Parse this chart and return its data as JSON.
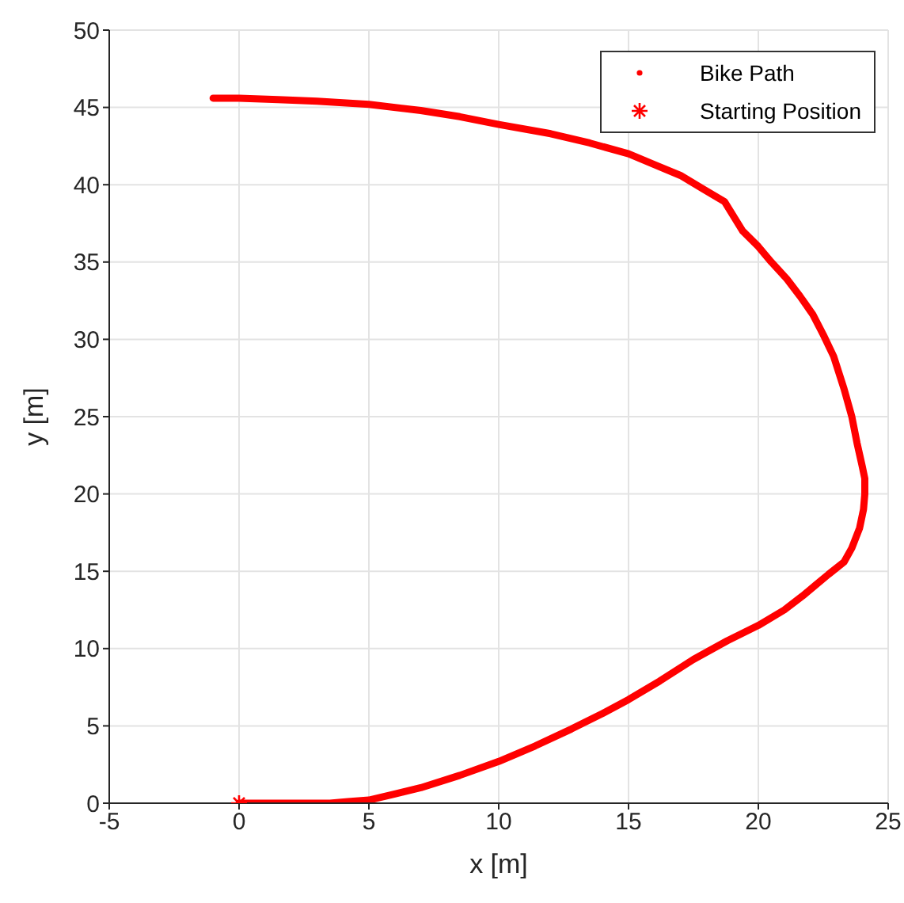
{
  "chart_data": {
    "type": "scatter",
    "xlabel": "x [m]",
    "ylabel": "y [m]",
    "xlim": [
      -5,
      25
    ],
    "ylim": [
      0,
      50
    ],
    "xticks": [
      -5,
      0,
      5,
      10,
      15,
      20,
      25
    ],
    "yticks": [
      0,
      5,
      10,
      15,
      20,
      25,
      30,
      35,
      40,
      45,
      50
    ],
    "grid": true,
    "legend": "top right",
    "series": [
      {
        "name": "Bike Path",
        "color": "#ff0000",
        "type": "line",
        "marker": "none",
        "line_style": "solid",
        "x": [
          0,
          3.5,
          4.2,
          5,
          6,
          7,
          8.5,
          10,
          11.4,
          12.8,
          14,
          15,
          16.2,
          17.5,
          18.8,
          20,
          21,
          21.7,
          22.2,
          22.7,
          23.3,
          23.6,
          23.9,
          24.05,
          24.1,
          24.1,
          24.0,
          23.8,
          23.6,
          23.3,
          22.9,
          22.5,
          22.1,
          21.6,
          21.1,
          20.5,
          20,
          19.4,
          18.7,
          17.9,
          17,
          16,
          15,
          13.5,
          12,
          10,
          8.5,
          7,
          5,
          3,
          1.5,
          0,
          -1
        ],
        "values": [
          0,
          0,
          0.1,
          0.2,
          0.6,
          1.0,
          1.8,
          2.7,
          3.7,
          4.8,
          5.8,
          6.7,
          7.9,
          9.3,
          10.5,
          11.5,
          12.5,
          13.4,
          14.1,
          14.8,
          15.6,
          16.5,
          17.8,
          19,
          20,
          21,
          21.8,
          23.3,
          25,
          26.8,
          28.9,
          30.3,
          31.6,
          32.8,
          33.9,
          35,
          36,
          37,
          38.9,
          39.7,
          40.6,
          41.3,
          42,
          42.7,
          43.3,
          43.9,
          44.4,
          44.8,
          45.2,
          45.4,
          45.5,
          45.6,
          45.6
        ]
      },
      {
        "name": "Starting Position",
        "color": "#ff0000",
        "marker": "cross",
        "x": [
          0
        ],
        "values": [
          0
        ]
      }
    ]
  }
}
